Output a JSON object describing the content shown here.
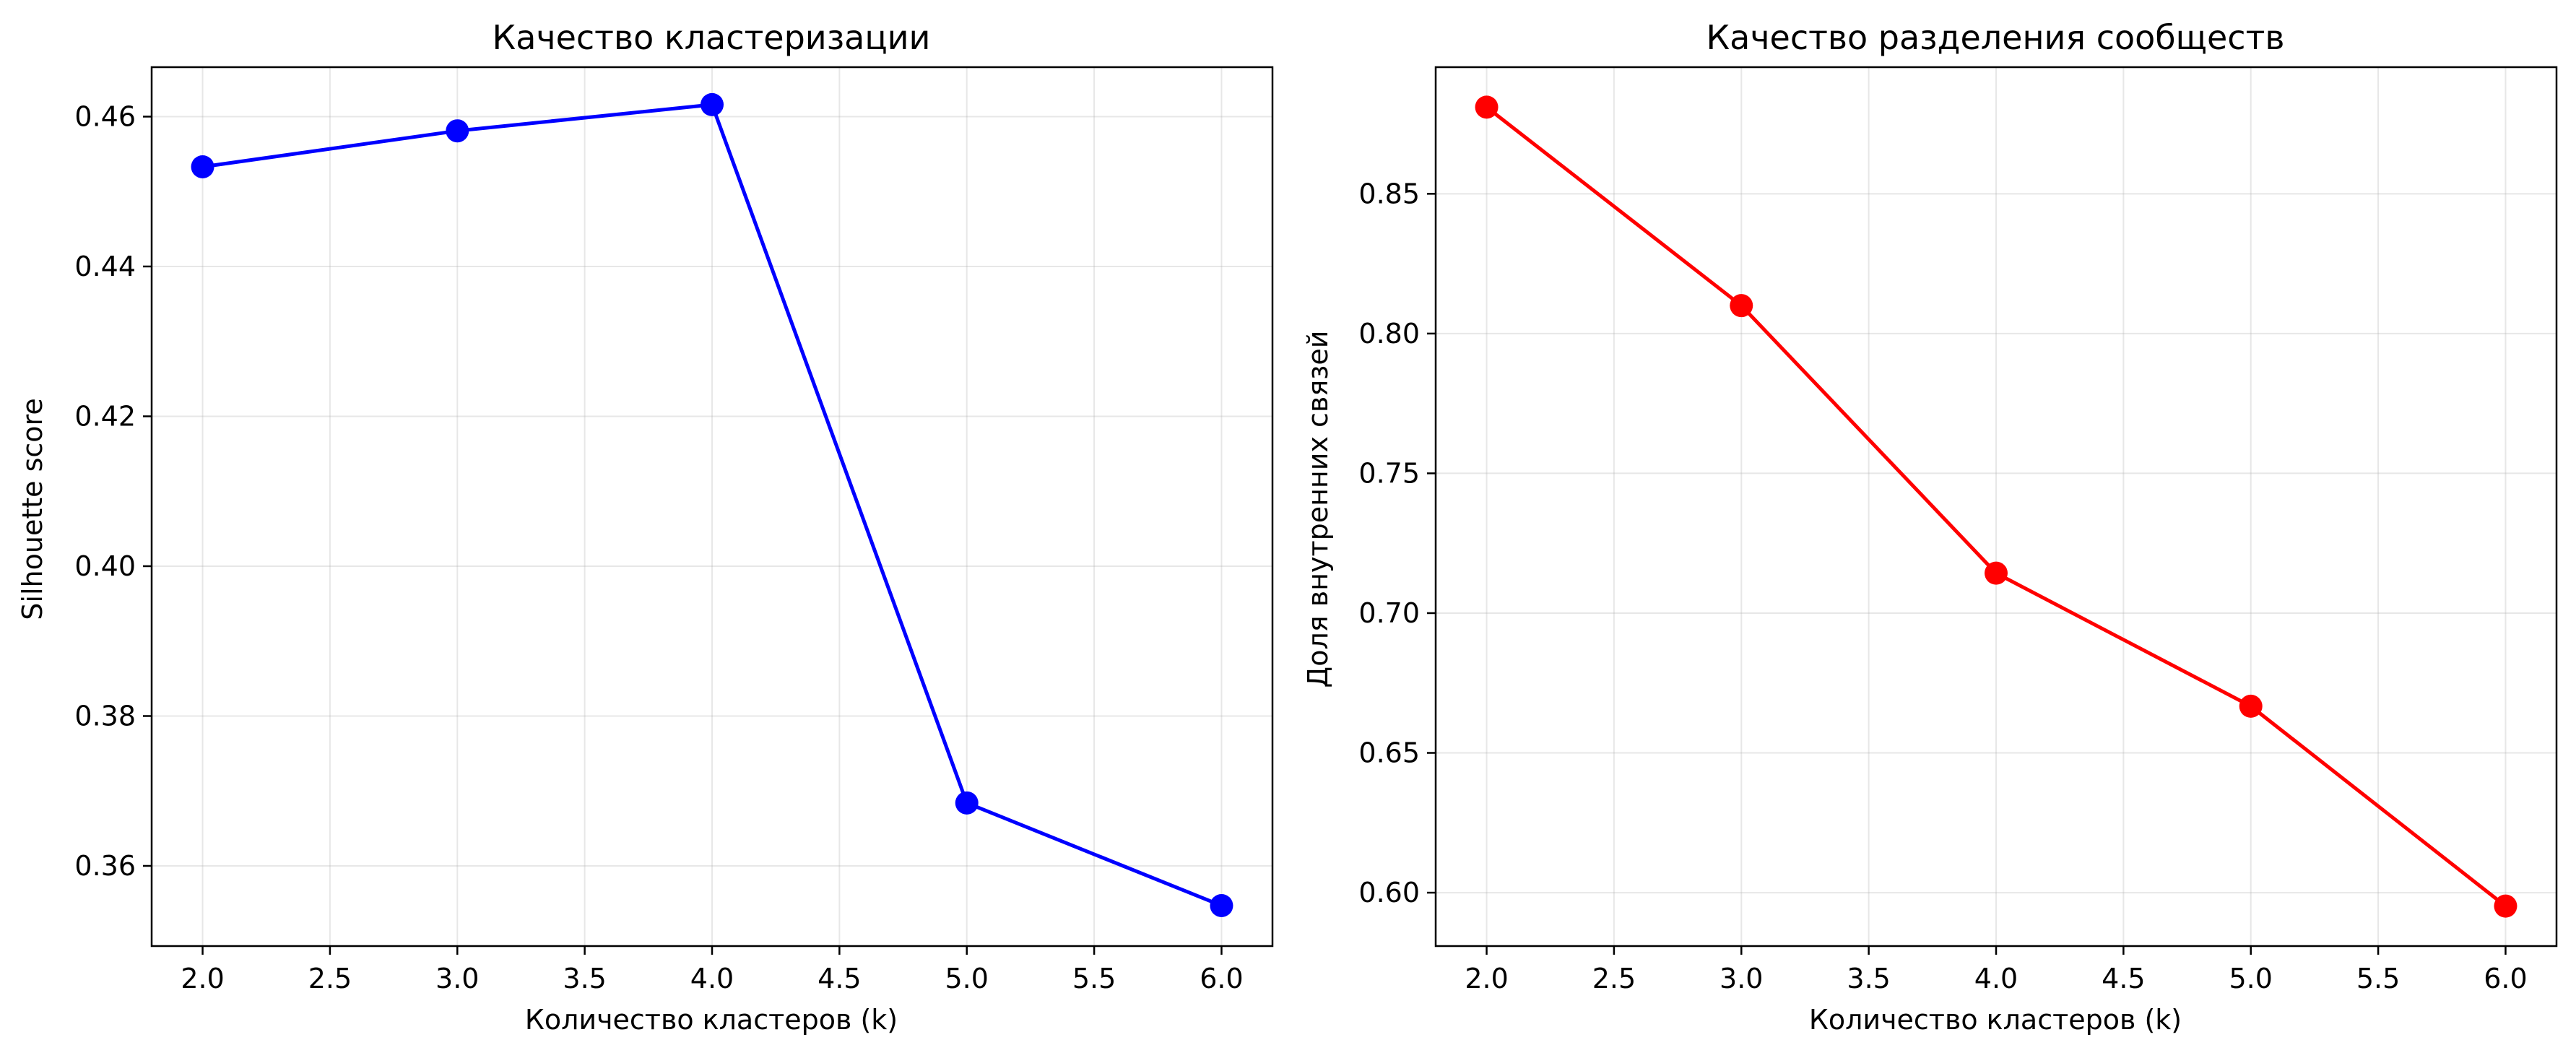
{
  "chart_data": [
    {
      "type": "line",
      "title": "Качество кластеризации",
      "xlabel": "Количество кластеров (k)",
      "ylabel": "Silhouette score",
      "x": [
        2,
        3,
        4,
        5,
        6
      ],
      "series": [
        {
          "values": [
            0.4533,
            0.4581,
            0.4616,
            0.3684,
            0.3547
          ],
          "color": "#0000ff"
        }
      ],
      "xlim": [
        1.8,
        6.2
      ],
      "ylim": [
        0.3493,
        0.4666
      ],
      "xticks": [
        2.0,
        2.5,
        3.0,
        3.5,
        4.0,
        4.5,
        5.0,
        5.5,
        6.0
      ],
      "xtick_labels": [
        "2.0",
        "2.5",
        "3.0",
        "3.5",
        "4.0",
        "4.5",
        "5.0",
        "5.5",
        "6.0"
      ],
      "yticks": [
        0.36,
        0.38,
        0.4,
        0.42,
        0.44,
        0.46
      ],
      "ytick_labels": [
        "0.36",
        "0.38",
        "0.40",
        "0.42",
        "0.44",
        "0.46"
      ],
      "grid": true,
      "marker": "circle"
    },
    {
      "type": "line",
      "title": "Качество разделения сообществ",
      "xlabel": "Количество кластеров (k)",
      "ylabel": "Доля внутренних связей",
      "x": [
        2,
        3,
        4,
        5,
        6
      ],
      "series": [
        {
          "values": [
            0.881,
            0.81,
            0.7143,
            0.6667,
            0.5952
          ],
          "color": "#ff0000"
        }
      ],
      "xlim": [
        1.8,
        6.2
      ],
      "ylim": [
        0.5809,
        0.8953
      ],
      "xticks": [
        2.0,
        2.5,
        3.0,
        3.5,
        4.0,
        4.5,
        5.0,
        5.5,
        6.0
      ],
      "xtick_labels": [
        "2.0",
        "2.5",
        "3.0",
        "3.5",
        "4.0",
        "4.5",
        "5.0",
        "5.5",
        "6.0"
      ],
      "yticks": [
        0.6,
        0.65,
        0.7,
        0.75,
        0.8,
        0.85
      ],
      "ytick_labels": [
        "0.60",
        "0.65",
        "0.70",
        "0.75",
        "0.80",
        "0.85"
      ],
      "grid": true,
      "marker": "circle"
    }
  ]
}
